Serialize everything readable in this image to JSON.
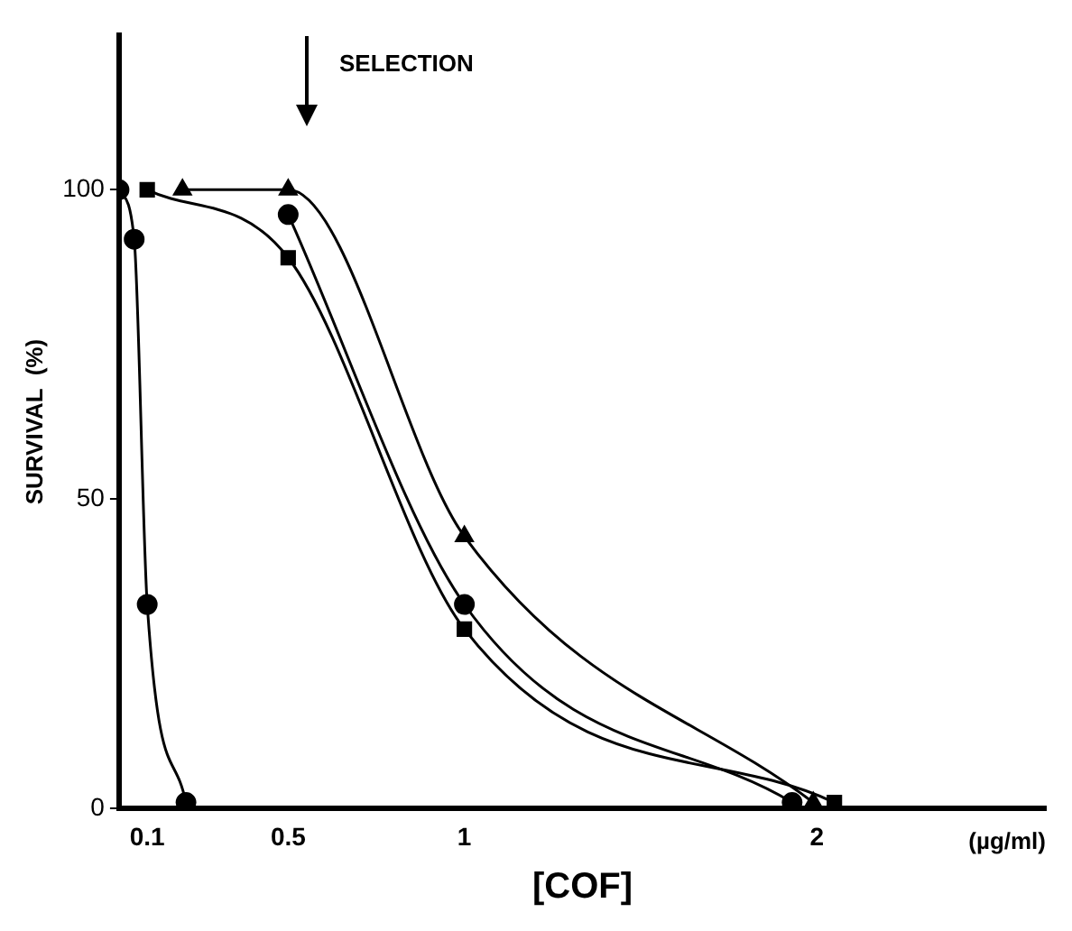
{
  "chart_data": {
    "type": "line",
    "ylabel": "SURVIVAL  (%)",
    "xlabel": "[COF]",
    "annotations": [
      "(µg/ml)",
      "SELECTION"
    ],
    "xlim": [
      0.02,
      2.65
    ],
    "xticks": [
      0.1,
      0.5,
      1,
      2
    ],
    "ylim": [
      0,
      125
    ],
    "yticks": [
      0,
      50,
      100
    ],
    "grid": false,
    "legend": false,
    "line_style": "solid",
    "series": [
      {
        "color": "#000000",
        "marker": "circle",
        "x": [
          0.02,
          0.063,
          0.1,
          0.21
        ],
        "values": [
          100,
          92,
          33,
          1
        ]
      },
      {
        "color": "#000000",
        "marker": "square",
        "x": [
          0.1,
          0.5,
          1.0,
          2.05
        ],
        "values": [
          100,
          89,
          29,
          1
        ]
      },
      {
        "color": "#000000",
        "marker": "circle",
        "x": [
          0.5,
          1.0,
          1.93
        ],
        "values": [
          96,
          33,
          1
        ]
      },
      {
        "color": "#000000",
        "marker": "triangle",
        "x": [
          0.2,
          0.5,
          1.0,
          1.99
        ],
        "values": [
          100,
          100,
          44,
          1
        ]
      }
    ]
  }
}
